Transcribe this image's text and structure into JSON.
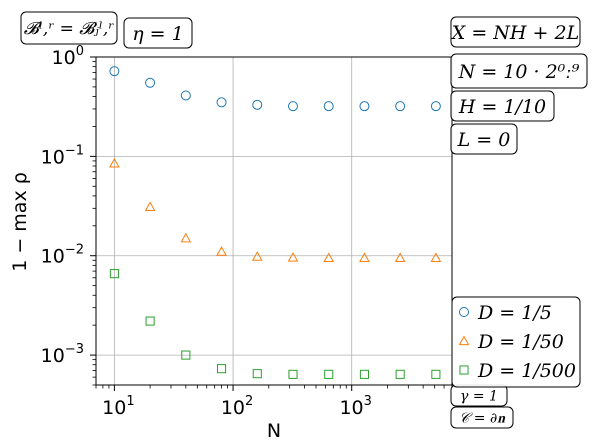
{
  "chart_data": {
    "type": "scatter",
    "title": "",
    "xlabel": "N",
    "ylabel": "1 − max ρ",
    "xscale": "log",
    "yscale": "log",
    "xlim": [
      7,
      7000
    ],
    "ylim": [
      0.0005,
      1.0
    ],
    "grid": true,
    "x": [
      10,
      20,
      40,
      80,
      160,
      320,
      640,
      1280,
      2560,
      5120
    ],
    "x_ticks": [
      {
        "value": 10,
        "base": "10",
        "exp": "1"
      },
      {
        "value": 100,
        "base": "10",
        "exp": "2"
      },
      {
        "value": 1000,
        "base": "10",
        "exp": "3"
      }
    ],
    "y_ticks": [
      {
        "value": 1,
        "base": "10",
        "exp": "0"
      },
      {
        "value": 0.1,
        "base": "10",
        "exp": "−1"
      },
      {
        "value": 0.01,
        "base": "10",
        "exp": "−2"
      },
      {
        "value": 0.001,
        "base": "10",
        "exp": "−3"
      }
    ],
    "series": [
      {
        "name": "D = 1/5",
        "marker": "circle",
        "color": "#1f77b4",
        "values": [
          0.72,
          0.55,
          0.41,
          0.35,
          0.33,
          0.32,
          0.32,
          0.32,
          0.32,
          0.32
        ]
      },
      {
        "name": "D = 1/50",
        "marker": "triangle",
        "color": "#ff7f0e",
        "values": [
          0.085,
          0.031,
          0.015,
          0.011,
          0.0098,
          0.0096,
          0.0095,
          0.0095,
          0.0095,
          0.0095
        ]
      },
      {
        "name": "D = 1/500",
        "marker": "square",
        "color": "#2ca02c",
        "values": [
          0.0066,
          0.0022,
          0.001,
          0.00073,
          0.00065,
          0.00064,
          0.00064,
          0.00064,
          0.00064,
          0.00064
        ]
      }
    ],
    "legend_position": "lower-right",
    "annotations": {
      "top_left": [
        "𝓑ˡ,ʳ = 𝓑ⱼˡ,ʳ",
        "η = 1"
      ],
      "right": [
        "X = NH + 2L",
        "N = 10 · 2⁰ː⁹",
        "H = 1/10",
        "L = 0"
      ],
      "bottom_right": [
        "γ = 1",
        "𝒞 = ∂𝐧"
      ]
    }
  }
}
